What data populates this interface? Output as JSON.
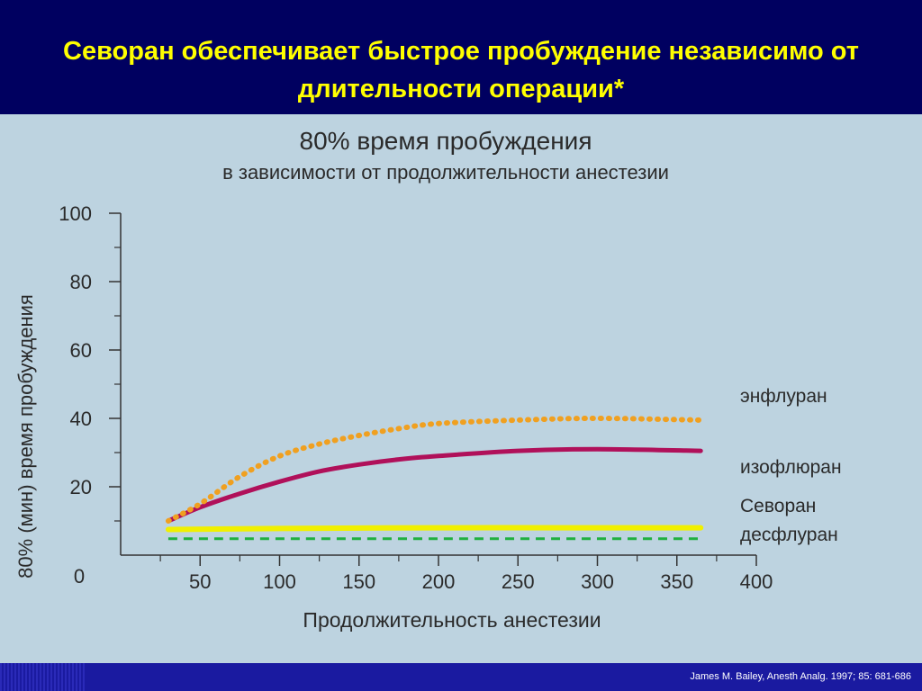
{
  "slide": {
    "title": "Севоран обеспечивает быстрое пробуждение независимо от\nдлительности операции*",
    "citation": "James M. Bailey, Anesth Analg. 1997; 85: 681-686"
  },
  "colors": {
    "header_bg": "#000060",
    "title_text": "#ffff00",
    "panel_bg": "#bdd3e0",
    "axis_text": "#2a2a2a"
  },
  "chart_data": {
    "type": "line",
    "title": "80% время пробуждения",
    "subtitle": "в зависимости от продолжительности анестезии",
    "xlabel": "Продолжительность анестезии",
    "ylabel": "80% (мин) время пробуждения",
    "xlim": [
      0,
      400
    ],
    "ylim": [
      0,
      100
    ],
    "x_ticks": [
      50,
      100,
      150,
      200,
      250,
      300,
      350,
      400
    ],
    "y_ticks": [
      100,
      80,
      60,
      40,
      20
    ],
    "origin_label": "0",
    "grid": false,
    "legend": "right, labels beside line ends",
    "series": [
      {
        "name": "энфлуран",
        "color": "#f0a020",
        "style": "dotted",
        "x": [
          30,
          50,
          75,
          100,
          125,
          150,
          175,
          200,
          250,
          300,
          365
        ],
        "y": [
          10,
          15,
          23,
          29,
          32.5,
          35,
          37,
          38.5,
          39.5,
          40,
          39.5
        ]
      },
      {
        "name": "изофлюран",
        "color": "#b0105a",
        "style": "solid",
        "x": [
          30,
          50,
          75,
          100,
          125,
          150,
          175,
          200,
          250,
          300,
          365
        ],
        "y": [
          10,
          14,
          18,
          21.5,
          24.5,
          26.5,
          28,
          29,
          30.5,
          31,
          30.5
        ]
      },
      {
        "name": "Севоран",
        "color": "#f0f000",
        "style": "solid",
        "x": [
          30,
          100,
          200,
          300,
          365
        ],
        "y": [
          7.5,
          7.8,
          8,
          8,
          8
        ]
      },
      {
        "name": "десфлуран",
        "color": "#20b040",
        "style": "dashed",
        "x": [
          30,
          100,
          200,
          300,
          365
        ],
        "y": [
          4.8,
          4.8,
          4.8,
          4.8,
          4.8
        ]
      }
    ]
  }
}
